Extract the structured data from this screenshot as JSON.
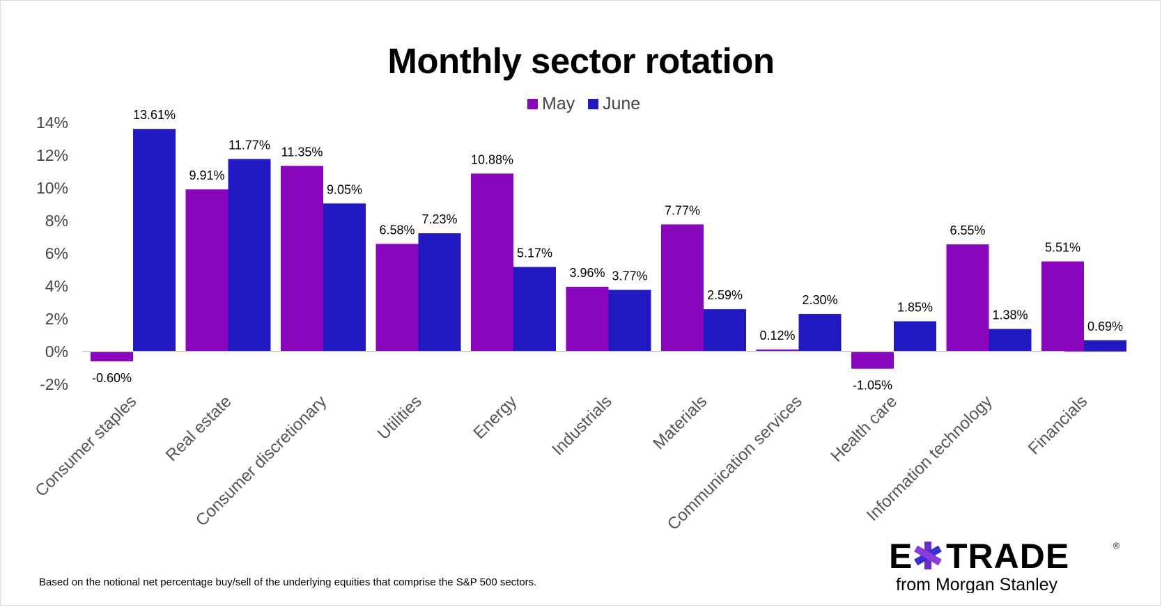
{
  "chart_data": {
    "type": "bar",
    "title": "Monthly sector rotation",
    "categories": [
      "Consumer staples",
      "Real estate",
      "Consumer discretionary",
      "Utilities",
      "Energy",
      "Industrials",
      "Materials",
      "Communication services",
      "Health care",
      "Information technology",
      "Financials"
    ],
    "series": [
      {
        "name": "May",
        "color": "#8a06bd",
        "values": [
          -0.6,
          9.91,
          11.35,
          6.58,
          10.88,
          3.96,
          7.77,
          0.12,
          -1.05,
          6.55,
          5.51
        ],
        "labels": [
          "-0.60%",
          "9.91%",
          "11.35%",
          "6.58%",
          "10.88%",
          "3.96%",
          "7.77%",
          "0.12%",
          "-1.05%",
          "6.55%",
          "5.51%"
        ]
      },
      {
        "name": "June",
        "color": "#2319c2",
        "values": [
          13.61,
          11.77,
          9.05,
          7.23,
          5.17,
          3.77,
          2.59,
          2.3,
          1.85,
          1.38,
          0.69
        ],
        "labels": [
          "13.61%",
          "11.77%",
          "9.05%",
          "7.23%",
          "5.17%",
          "3.77%",
          "2.59%",
          "2.30%",
          "1.85%",
          "1.38%",
          "0.69%"
        ]
      }
    ],
    "yticks": [
      "-2%",
      "0%",
      "2%",
      "4%",
      "6%",
      "8%",
      "10%",
      "12%",
      "14%"
    ],
    "ytick_values": [
      -2,
      0,
      2,
      4,
      6,
      8,
      10,
      12,
      14
    ],
    "ylim": [
      -2,
      14
    ],
    "xlabel": "",
    "ylabel": "",
    "legend_position": "top-center"
  },
  "footnote": "Based on the notional net percentage buy/sell of the underlying equities that comprise the S&P 500 sectors.",
  "logo": {
    "wordmark": "E*TRADE",
    "left": "E",
    "right": "TRADE",
    "tagline": "from Morgan Stanley",
    "registered": "®"
  }
}
